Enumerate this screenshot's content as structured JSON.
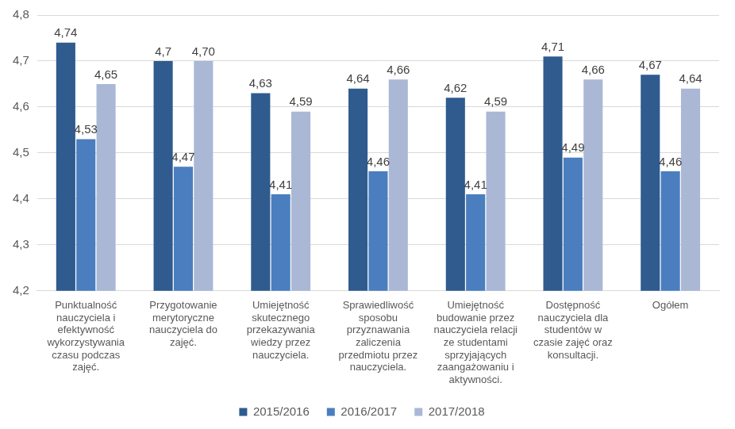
{
  "chart_data": {
    "type": "bar",
    "categories": [
      "Punktualność nauczyciela i efektywność wykorzystywania czasu podczas zajęć.",
      "Przygotowanie merytoryczne nauczyciela do zajęć.",
      "Umiejętność skutecznego przekazywania wiedzy przez nauczyciela.",
      "Sprawiedliwość sposobu przyznawania zaliczenia przedmiotu przez nauczyciela.",
      "Umiejętność budowanie przez nauczyciela relacji ze studentami sprzyjających zaangażowaniu i aktywności.",
      "Dostępność nauczyciela dla studentów w czasie zajęć oraz konsultacji.",
      "Ogółem"
    ],
    "series": [
      {
        "name": "2015/2016",
        "color": "#2f5b8f",
        "values": [
          4.74,
          4.7,
          4.63,
          4.64,
          4.62,
          4.71,
          4.67
        ],
        "value_labels": [
          "4,74",
          "4,7",
          "4,63",
          "4,64",
          "4,62",
          "4,71",
          "4,67"
        ]
      },
      {
        "name": "2016/2017",
        "color": "#4a7ebf",
        "values": [
          4.53,
          4.47,
          4.41,
          4.46,
          4.41,
          4.49,
          4.46
        ],
        "value_labels": [
          "4,53",
          "4,47",
          "4,41",
          "4,46",
          "4,41",
          "4,49",
          "4,46"
        ]
      },
      {
        "name": "2017/2018",
        "color": "#aab8d6",
        "values": [
          4.65,
          4.7,
          4.59,
          4.66,
          4.59,
          4.66,
          4.64
        ],
        "value_labels": [
          "4,65",
          "4,70",
          "4,59",
          "4,66",
          "4,59",
          "4,66",
          "4,64"
        ]
      }
    ],
    "ylim": [
      4.2,
      4.8
    ],
    "yticks": [
      {
        "value": 4.2,
        "label": "4,2"
      },
      {
        "value": 4.3,
        "label": "4,3"
      },
      {
        "value": 4.4,
        "label": "4,4"
      },
      {
        "value": 4.5,
        "label": "4,5"
      },
      {
        "value": 4.6,
        "label": "4,6"
      },
      {
        "value": 4.7,
        "label": "4,7"
      },
      {
        "value": 4.8,
        "label": "4,8"
      }
    ],
    "grid": true,
    "legend": "bottom",
    "data_labels": true
  }
}
